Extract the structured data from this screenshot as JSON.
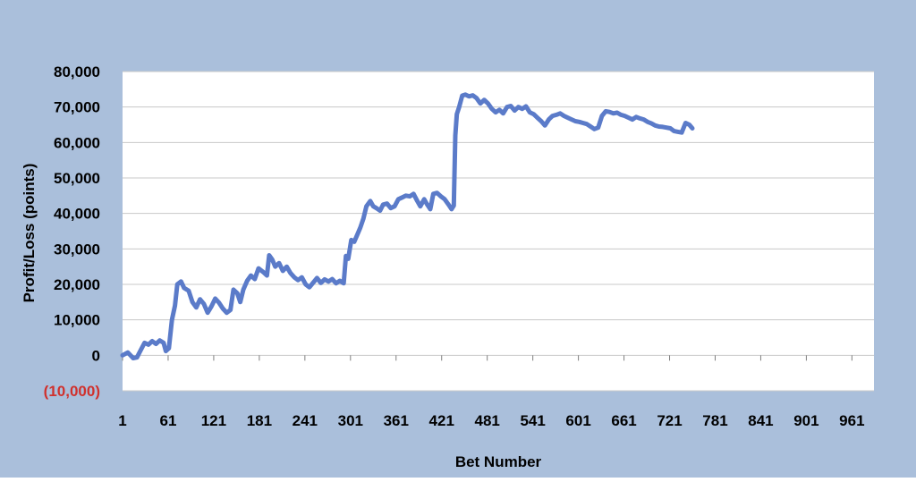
{
  "chart_data": {
    "type": "line",
    "title": "",
    "xlabel": "Bet Number",
    "ylabel": "Profit/Loss (points)",
    "xlim": [
      1,
      990
    ],
    "ylim": [
      -10000,
      80000
    ],
    "y_ticks": [
      {
        "value": 80000,
        "label": "80,000",
        "color": "#000000"
      },
      {
        "value": 70000,
        "label": "70,000",
        "color": "#000000"
      },
      {
        "value": 60000,
        "label": "60,000",
        "color": "#000000"
      },
      {
        "value": 50000,
        "label": "50,000",
        "color": "#000000"
      },
      {
        "value": 40000,
        "label": "40,000",
        "color": "#000000"
      },
      {
        "value": 30000,
        "label": "30,000",
        "color": "#000000"
      },
      {
        "value": 20000,
        "label": "20,000",
        "color": "#000000"
      },
      {
        "value": 10000,
        "label": "10,000",
        "color": "#000000"
      },
      {
        "value": 0,
        "label": "0",
        "color": "#000000"
      },
      {
        "value": -10000,
        "label": "(10,000)",
        "color": "#d0312d"
      }
    ],
    "x_ticks": [
      {
        "value": 1,
        "label": "1"
      },
      {
        "value": 61,
        "label": "61"
      },
      {
        "value": 121,
        "label": "121"
      },
      {
        "value": 181,
        "label": "181"
      },
      {
        "value": 241,
        "label": "241"
      },
      {
        "value": 301,
        "label": "301"
      },
      {
        "value": 361,
        "label": "361"
      },
      {
        "value": 421,
        "label": "421"
      },
      {
        "value": 481,
        "label": "481"
      },
      {
        "value": 541,
        "label": "541"
      },
      {
        "value": 601,
        "label": "601"
      },
      {
        "value": 661,
        "label": "661"
      },
      {
        "value": 721,
        "label": "721"
      },
      {
        "value": 781,
        "label": "781"
      },
      {
        "value": 841,
        "label": "841"
      },
      {
        "value": 901,
        "label": "901"
      },
      {
        "value": 961,
        "label": "961"
      }
    ],
    "grid": true,
    "legend": "none",
    "colors": {
      "frame": "#aabfdb",
      "plot_bg": "#ffffff",
      "line": "#5b7bc9",
      "grid": "#c8c8c8",
      "negative_label": "#d0312d"
    },
    "series": [
      {
        "values_xy": [
          [
            1,
            0
          ],
          [
            8,
            800
          ],
          [
            15,
            -800
          ],
          [
            20,
            -600
          ],
          [
            25,
            1500
          ],
          [
            30,
            3500
          ],
          [
            35,
            3000
          ],
          [
            40,
            4000
          ],
          [
            45,
            3200
          ],
          [
            50,
            4200
          ],
          [
            55,
            3500
          ],
          [
            58,
            1200
          ],
          [
            62,
            2000
          ],
          [
            66,
            10000
          ],
          [
            70,
            14000
          ],
          [
            73,
            20000
          ],
          [
            78,
            20800
          ],
          [
            82,
            19000
          ],
          [
            88,
            18200
          ],
          [
            93,
            15000
          ],
          [
            98,
            13500
          ],
          [
            103,
            15800
          ],
          [
            108,
            14500
          ],
          [
            113,
            12000
          ],
          [
            118,
            13800
          ],
          [
            123,
            16000
          ],
          [
            128,
            14800
          ],
          [
            133,
            13200
          ],
          [
            138,
            12000
          ],
          [
            143,
            12800
          ],
          [
            147,
            18500
          ],
          [
            152,
            17500
          ],
          [
            156,
            15000
          ],
          [
            160,
            18500
          ],
          [
            165,
            21000
          ],
          [
            170,
            22500
          ],
          [
            175,
            21500
          ],
          [
            180,
            24500
          ],
          [
            186,
            23500
          ],
          [
            191,
            22500
          ],
          [
            194,
            28200
          ],
          [
            198,
            27000
          ],
          [
            202,
            25000
          ],
          [
            207,
            26000
          ],
          [
            212,
            23800
          ],
          [
            217,
            25000
          ],
          [
            222,
            23200
          ],
          [
            227,
            22000
          ],
          [
            232,
            21200
          ],
          [
            237,
            22000
          ],
          [
            242,
            20000
          ],
          [
            247,
            19200
          ],
          [
            252,
            20500
          ],
          [
            257,
            21800
          ],
          [
            262,
            20400
          ],
          [
            267,
            21400
          ],
          [
            272,
            20800
          ],
          [
            277,
            21500
          ],
          [
            282,
            20300
          ],
          [
            287,
            21000
          ],
          [
            292,
            20300
          ],
          [
            295,
            28000
          ],
          [
            298,
            27200
          ],
          [
            302,
            32500
          ],
          [
            306,
            32000
          ],
          [
            310,
            34000
          ],
          [
            314,
            36000
          ],
          [
            318,
            38500
          ],
          [
            322,
            42000
          ],
          [
            327,
            43500
          ],
          [
            331,
            42000
          ],
          [
            335,
            41500
          ],
          [
            340,
            40800
          ],
          [
            344,
            42500
          ],
          [
            349,
            42800
          ],
          [
            354,
            41500
          ],
          [
            359,
            42000
          ],
          [
            364,
            44000
          ],
          [
            369,
            44500
          ],
          [
            374,
            45000
          ],
          [
            379,
            44800
          ],
          [
            384,
            45500
          ],
          [
            389,
            43500
          ],
          [
            393,
            42000
          ],
          [
            398,
            44000
          ],
          [
            402,
            42500
          ],
          [
            406,
            41200
          ],
          [
            410,
            45500
          ],
          [
            415,
            45800
          ],
          [
            420,
            44800
          ],
          [
            425,
            44000
          ],
          [
            430,
            42500
          ],
          [
            434,
            41200
          ],
          [
            437,
            42200
          ],
          [
            439,
            62000
          ],
          [
            441,
            68000
          ],
          [
            444,
            70000
          ],
          [
            448,
            73200
          ],
          [
            452,
            73500
          ],
          [
            457,
            73000
          ],
          [
            462,
            73300
          ],
          [
            467,
            72500
          ],
          [
            472,
            71000
          ],
          [
            477,
            72000
          ],
          [
            482,
            71000
          ],
          [
            487,
            69500
          ],
          [
            492,
            68500
          ],
          [
            497,
            69200
          ],
          [
            502,
            68200
          ],
          [
            507,
            70000
          ],
          [
            512,
            70300
          ],
          [
            517,
            69000
          ],
          [
            522,
            70000
          ],
          [
            527,
            69500
          ],
          [
            532,
            70200
          ],
          [
            537,
            68500
          ],
          [
            542,
            68000
          ],
          [
            547,
            67000
          ],
          [
            552,
            66000
          ],
          [
            557,
            64800
          ],
          [
            562,
            66500
          ],
          [
            567,
            67500
          ],
          [
            572,
            67800
          ],
          [
            577,
            68200
          ],
          [
            582,
            67500
          ],
          [
            587,
            67000
          ],
          [
            592,
            66500
          ],
          [
            597,
            66000
          ],
          [
            602,
            65800
          ],
          [
            607,
            65500
          ],
          [
            612,
            65200
          ],
          [
            617,
            64500
          ],
          [
            622,
            63800
          ],
          [
            627,
            64200
          ],
          [
            632,
            67500
          ],
          [
            637,
            68800
          ],
          [
            642,
            68600
          ],
          [
            647,
            68200
          ],
          [
            652,
            68400
          ],
          [
            657,
            67800
          ],
          [
            662,
            67500
          ],
          [
            667,
            67000
          ],
          [
            672,
            66500
          ],
          [
            677,
            67200
          ],
          [
            682,
            66800
          ],
          [
            687,
            66500
          ],
          [
            692,
            65800
          ],
          [
            697,
            65400
          ],
          [
            702,
            64800
          ],
          [
            707,
            64500
          ],
          [
            712,
            64400
          ],
          [
            717,
            64200
          ],
          [
            722,
            64000
          ],
          [
            727,
            63200
          ],
          [
            732,
            63000
          ],
          [
            737,
            62800
          ],
          [
            742,
            65500
          ],
          [
            747,
            65000
          ],
          [
            751,
            64000
          ]
        ]
      }
    ]
  }
}
